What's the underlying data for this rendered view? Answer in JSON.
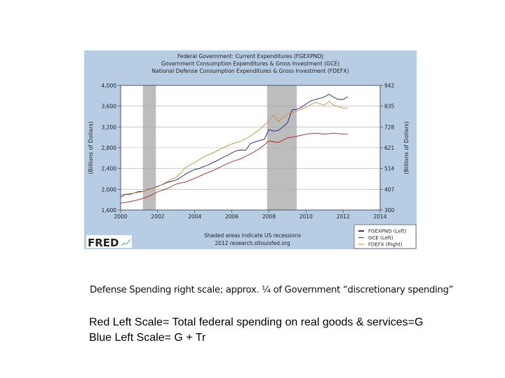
{
  "chart_data": {
    "type": "line",
    "title_lines": [
      "Federal Government: Current Expenditures (FGEXPND)",
      "Government Consumption Expenditures & Gross Investment (GCE)",
      "National Defense Consumption Expenditures & Gross Investment (FDEFX)"
    ],
    "ylabel_left": "(Billions of Dollars)",
    "ylabel_right": "(Billions of Dollars)",
    "xlim": [
      2000,
      2014
    ],
    "ylim_left": [
      1600,
      4000
    ],
    "ylim_right": [
      300,
      942
    ],
    "x_ticks": [
      "2000",
      "2002",
      "2004",
      "2006",
      "2008",
      "2010",
      "2012",
      "2014"
    ],
    "y_ticks_left": [
      "1,600",
      "2,000",
      "2,400",
      "2,800",
      "3,200",
      "3,600",
      "4,000"
    ],
    "y_ticks_right": [
      "300",
      "407",
      "514",
      "621",
      "728",
      "835",
      "942"
    ],
    "grid": "horizontal",
    "recessions": [
      [
        2001.2,
        2001.9
      ],
      [
        2007.9,
        2009.5
      ]
    ],
    "legend_position": "bottom-right",
    "series": [
      {
        "name": "FGEXPND (Left)",
        "axis": "left",
        "color": "#1a1a8c",
        "x": [
          2000,
          2000.25,
          2000.5,
          2000.75,
          2001,
          2001.25,
          2001.5,
          2001.75,
          2002,
          2002.25,
          2002.5,
          2002.75,
          2003,
          2003.25,
          2003.5,
          2003.75,
          2004,
          2004.25,
          2004.5,
          2004.75,
          2005,
          2005.25,
          2005.5,
          2005.75,
          2006,
          2006.25,
          2006.5,
          2006.75,
          2007,
          2007.25,
          2007.5,
          2007.75,
          2008,
          2008.25,
          2008.5,
          2008.75,
          2009,
          2009.25,
          2009.5,
          2009.75,
          2010,
          2010.25,
          2010.5,
          2010.75,
          2011,
          2011.25,
          2011.5,
          2011.75,
          2012,
          2012.25
        ],
        "values": [
          1850,
          1900,
          1900,
          1930,
          1960,
          1960,
          2000,
          2020,
          2060,
          2090,
          2130,
          2150,
          2180,
          2230,
          2290,
          2340,
          2380,
          2400,
          2440,
          2470,
          2520,
          2560,
          2610,
          2650,
          2700,
          2740,
          2760,
          2750,
          2880,
          2910,
          2940,
          2960,
          3150,
          3120,
          3130,
          3200,
          3280,
          3530,
          3540,
          3580,
          3640,
          3700,
          3730,
          3750,
          3780,
          3830,
          3770,
          3730,
          3730,
          3780
        ]
      },
      {
        "name": "GCE (Left)",
        "axis": "left",
        "color": "#b01c1c",
        "x": [
          2000,
          2000.5,
          2001,
          2001.5,
          2002,
          2002.5,
          2003,
          2003.5,
          2004,
          2004.5,
          2005,
          2005.5,
          2006,
          2006.5,
          2007,
          2007.5,
          2008,
          2008.5,
          2009,
          2009.5,
          2010,
          2010.5,
          2011,
          2011.5,
          2012,
          2012.25
        ],
        "values": [
          1730,
          1760,
          1800,
          1860,
          1950,
          2010,
          2100,
          2140,
          2210,
          2290,
          2360,
          2450,
          2530,
          2590,
          2680,
          2780,
          2930,
          2900,
          2990,
          3020,
          3060,
          3080,
          3060,
          3080,
          3060,
          3060
        ]
      },
      {
        "name": "FDEFX (Right)",
        "axis": "right",
        "color": "#d08a2a",
        "x": [
          2000,
          2000.5,
          2001,
          2001.5,
          2002,
          2002.5,
          2003,
          2003.25,
          2003.5,
          2004,
          2004.5,
          2005,
          2005.5,
          2006,
          2006.5,
          2007,
          2007.5,
          2008,
          2008.25,
          2008.5,
          2009,
          2009.5,
          2010,
          2010.5,
          2011,
          2011.25,
          2011.5,
          2012,
          2012.25
        ],
        "values": [
          378,
          385,
          390,
          405,
          420,
          445,
          470,
          490,
          520,
          545,
          575,
          595,
          620,
          640,
          655,
          680,
          715,
          760,
          790,
          755,
          795,
          810,
          830,
          855,
          840,
          860,
          840,
          825,
          825
        ]
      }
    ],
    "notes": [
      "Shaded areas indicate US recessions",
      "2012 research.stlouisfed.org"
    ],
    "brand": "FRED"
  },
  "captions": {
    "line1": "Defense Spending right scale; approx. ¼ of Government “discretionary spending”",
    "line2": "Red Left Scale= Total federal spending on real goods & services=G",
    "line3": "Blue Left Scale= G + Tr"
  }
}
